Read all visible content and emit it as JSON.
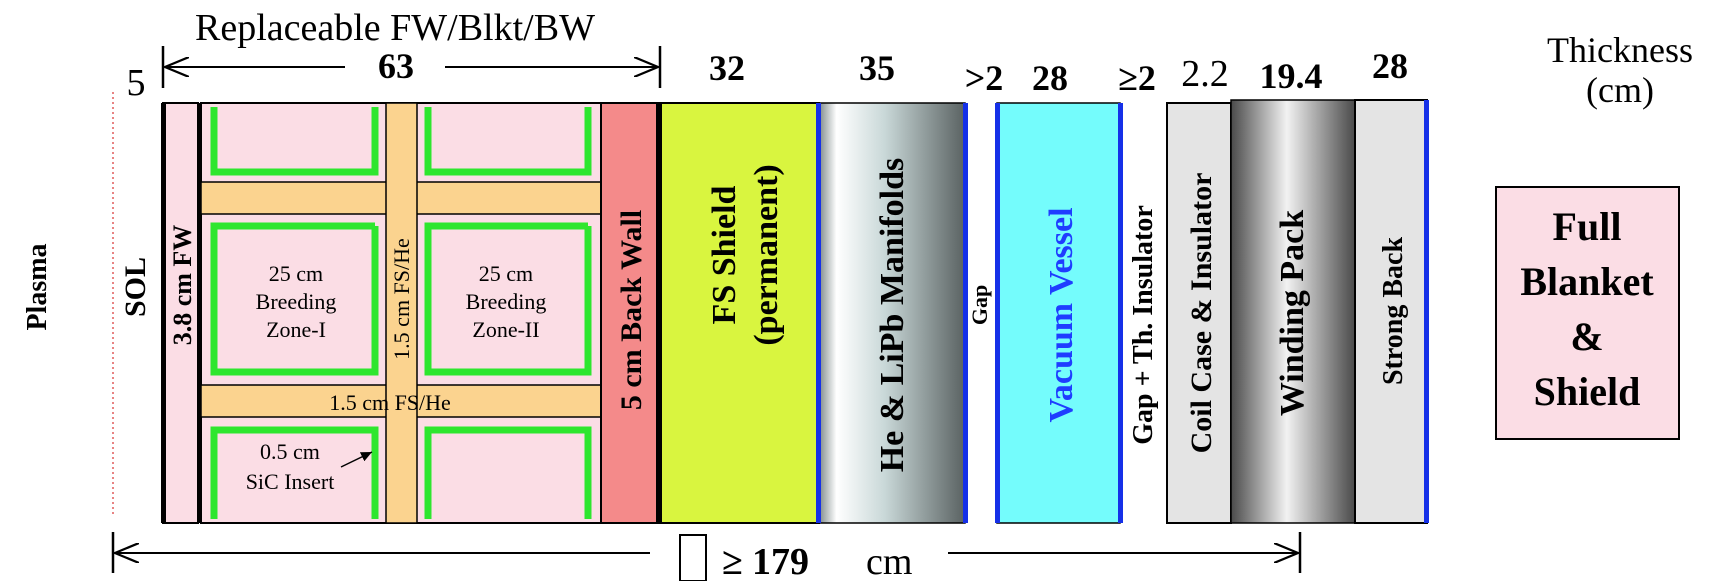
{
  "header": {
    "replaceable_label": "Replaceable FW/Blkt/BW",
    "thickness_label_line1": "Thickness",
    "thickness_label_line2": "(cm)"
  },
  "thicknesses": {
    "sol": "5",
    "replaceable": "63",
    "fs_shield": "32",
    "manifolds": "35",
    "gap": ">2",
    "vacuum_vessel": "28",
    "gap_insulator": "≥2",
    "coil_case": "2.2",
    "winding_pack": "19.4",
    "strong_back": "28"
  },
  "labels": {
    "plasma": "Plasma",
    "sol": "SOL",
    "first_wall": "3.8 cm FW",
    "back_wall": "5 cm Back Wall",
    "fs_shield_line1": "FS Shield",
    "fs_shield_line2": "(permanent)",
    "manifolds": "He & LiPb Manifolds",
    "gap": "Gap",
    "vacuum_vessel": "Vacuum Vessel",
    "gap_insulator": "Gap + Th. Insulator",
    "coil_case": "Coil Case & Insulator",
    "winding_pack": "Winding Pack",
    "strong_back": "Strong Back"
  },
  "blanket": {
    "zone1_line1": "25 cm",
    "zone1_line2": "Breeding",
    "zone1_line3": "Zone-I",
    "zone2_line1": "25 cm",
    "zone2_line2": "Breeding",
    "zone2_line3": "Zone-II",
    "vertical_rib": "1.5 cm FS/He",
    "horizontal_rib": "1.5 cm FS/He",
    "insert_line1": "0.5 cm",
    "insert_line2": "SiC Insert"
  },
  "total": {
    "symbol": "≥",
    "value": "179",
    "unit": "cm"
  },
  "legend": {
    "line1": "Full",
    "line2": "Blanket",
    "line3": "&",
    "line4": "Shield"
  },
  "colors": {
    "breeding_zone": "#fbdde5",
    "rib": "#fbd38f",
    "sic_insert": "#2ee62e",
    "back_wall": "#f48a8a",
    "fs_shield": "#d9f53f",
    "vacuum_vessel": "#74fcfc",
    "vacuum_vessel_text": "#1f3dff",
    "blue_edge": "#1530e8",
    "coil_case": "#e4e4e4",
    "legend_box": "#fbdde5"
  }
}
